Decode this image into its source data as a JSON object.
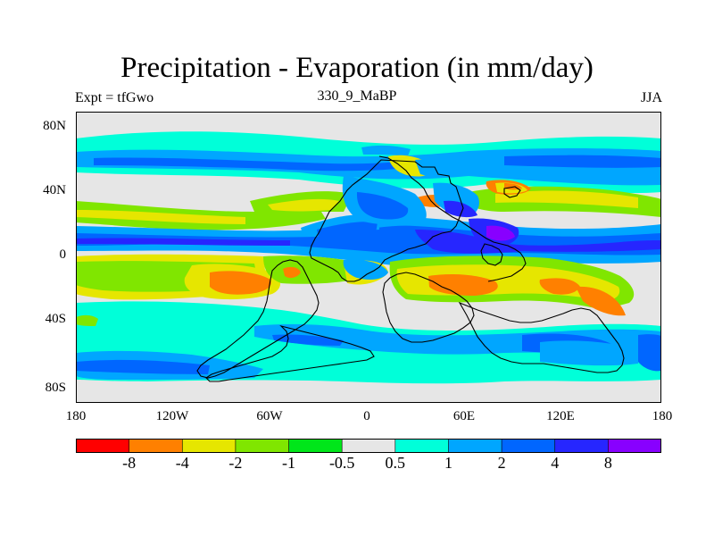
{
  "title": "Precipitation - Evaporation (in mm/day)",
  "subtitle_left": "Expt = tfGwo",
  "subtitle_center": "330_9_MaBP",
  "subtitle_right": "JJA",
  "y_ticks": [
    "80N",
    "40N",
    "0",
    "40S",
    "80S"
  ],
  "x_ticks": [
    "180",
    "120W",
    "60W",
    "0",
    "60E",
    "120E",
    "180"
  ],
  "colorbar": {
    "colors": [
      "#ff0000",
      "#ff8000",
      "#e6e600",
      "#80e600",
      "#00e61a",
      "#e6e6e6",
      "#00ffd9",
      "#00a6ff",
      "#0066ff",
      "#2626ff",
      "#8800ff"
    ],
    "labels": [
      "-8",
      "-4",
      "-2",
      "-1",
      "-0.5",
      "0.5",
      "1",
      "2",
      "4",
      "8"
    ]
  },
  "legend": {
    "colors": {
      "fill_ocean_dry": "#e6e6e6",
      "coast": "#000000"
    }
  }
}
